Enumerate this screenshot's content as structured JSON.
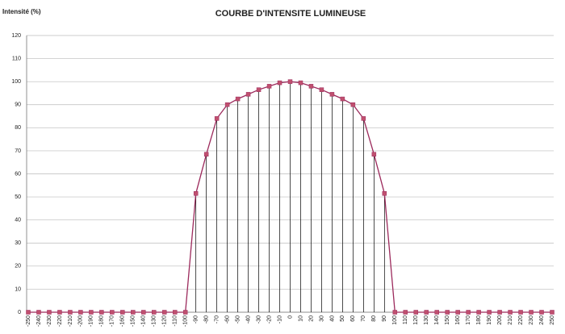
{
  "chart_data": {
    "type": "line",
    "title": "COURBE D'INTENSITE LUMINEUSE",
    "y_label": "Intensité (%)",
    "categories": [
      "-250",
      "-240",
      "-230",
      "-220",
      "-210",
      "-200",
      "-190",
      "-180",
      "-170",
      "-160",
      "-150",
      "-140",
      "-130",
      "-120",
      "-110",
      "-100",
      "-90",
      "-80",
      "-70",
      "-60",
      "-50",
      "-40",
      "-30",
      "-20",
      "-10",
      "0",
      "10",
      "20",
      "30",
      "40",
      "50",
      "60",
      "70",
      "80",
      "90",
      "100",
      "110",
      "120",
      "130",
      "140",
      "150",
      "160",
      "170",
      "180",
      "190",
      "200",
      "210",
      "220",
      "230",
      "240",
      "250"
    ],
    "series": [
      {
        "name": "Intensité",
        "color": "#9c2a5c",
        "marker_color": "#c0506f",
        "values": [
          0,
          0,
          0,
          0,
          0,
          0,
          0,
          0,
          0,
          0,
          0,
          0,
          0,
          0,
          0,
          0,
          51.5,
          68.5,
          84,
          90,
          92.5,
          94.5,
          96.5,
          98,
          99.5,
          100,
          99.5,
          98,
          96.5,
          94.5,
          92.5,
          90,
          84,
          68.5,
          51.5,
          0,
          0,
          0,
          0,
          0,
          0,
          0,
          0,
          0,
          0,
          0,
          0,
          0,
          0,
          0,
          0
        ]
      }
    ],
    "ylim": [
      0,
      120
    ],
    "yticks": [
      0,
      10,
      20,
      30,
      40,
      50,
      60,
      70,
      80,
      90,
      100,
      110,
      120
    ],
    "grid": true,
    "drop_lines": true
  }
}
